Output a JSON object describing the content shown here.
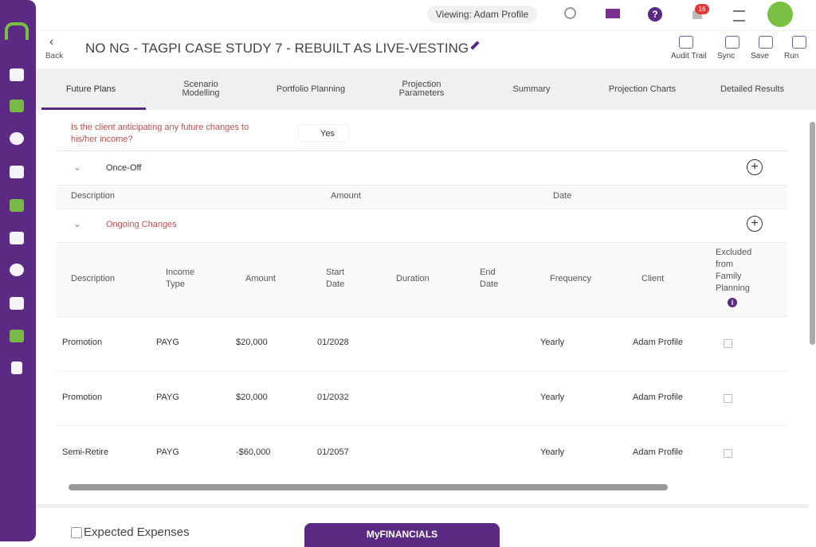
{
  "header": {
    "viewing": "Viewing: Adam Profile",
    "notifications": "16",
    "back": "Back",
    "title": "NO NG - TAGPI CASE STUDY 7 - REBUILT AS LIVE-VESTING",
    "actions": [
      "Audit Trail",
      "Sync",
      "Save",
      "Run"
    ]
  },
  "tabs": [
    "Future Plans",
    "Scenario Modelling",
    "Portfolio Planning",
    "Projection Parameters",
    "Summary",
    "Projection Charts",
    "Detailed Results"
  ],
  "question": {
    "text": "Is the client anticipating any future changes to his/her income?",
    "answer": "Yes"
  },
  "once_off": {
    "title": "Once-Off",
    "columns": [
      "Description",
      "Amount",
      "Date"
    ]
  },
  "ongoing": {
    "title": "Ongoing Changes",
    "columns": [
      "Description",
      "Income Type",
      "Amount",
      "Start Date",
      "Duration",
      "End Date",
      "Frequency",
      "Client",
      "Excluded from Family Planning"
    ],
    "rows": [
      {
        "description": "Promotion",
        "income_type": "PAYG",
        "amount": "$20,000",
        "start_date": "01/2028",
        "frequency": "Yearly",
        "client": "Adam Profile"
      },
      {
        "description": "Promotion",
        "income_type": "PAYG",
        "amount": "$20,000",
        "start_date": "01/2032",
        "frequency": "Yearly",
        "client": "Adam Profile"
      },
      {
        "description": "Semi-Retire",
        "income_type": "PAYG",
        "amount": "-$60,000",
        "start_date": "01/2057",
        "frequency": "Yearly",
        "client": "Adam Profile"
      }
    ]
  },
  "footer": {
    "section": "Expected Expenses",
    "button": "MyFINANCIALS"
  }
}
